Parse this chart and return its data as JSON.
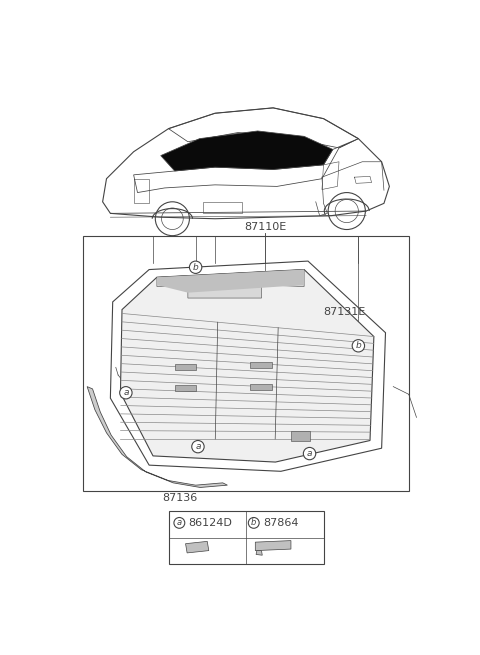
{
  "bg_color": "#ffffff",
  "label_87110E": "87110E",
  "label_87131E": "87131E",
  "label_87136": "87136",
  "label_86124D": "86124D",
  "label_87864": "87864",
  "badge_a": "a",
  "badge_b": "b",
  "line_color": "#444444",
  "glass_fill": "#f0f0f0",
  "defroster_color": "#888888",
  "mould_fill": "#cccccc"
}
